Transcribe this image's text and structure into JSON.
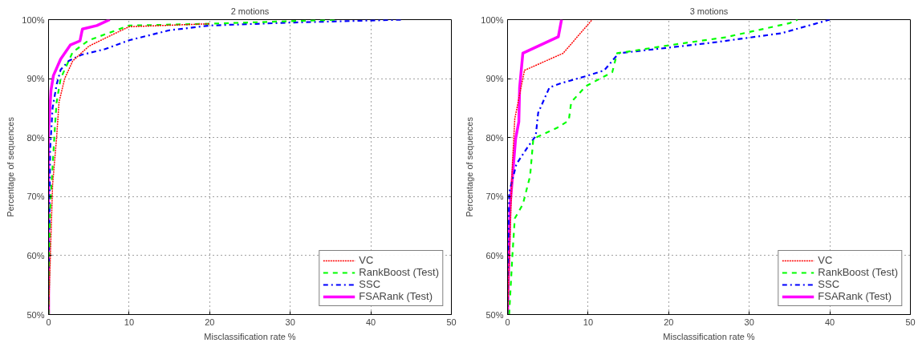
{
  "chart_data": [
    {
      "type": "line",
      "title": "2 motions",
      "xlabel": "Misclassification rate %",
      "ylabel": "Percentage of sequences",
      "xlim": [
        0,
        50
      ],
      "ylim": [
        50,
        100
      ],
      "xticks": [
        0,
        10,
        20,
        30,
        40,
        50
      ],
      "yticks": [
        {
          "value": 50,
          "label": "50%"
        },
        {
          "value": 60,
          "label": "60%"
        },
        {
          "value": 70,
          "label": "70%"
        },
        {
          "value": 80,
          "label": "80%"
        },
        {
          "value": 90,
          "label": "90%"
        },
        {
          "value": 100,
          "label": "100%"
        }
      ],
      "grid": true,
      "legend": "bottom right",
      "series": [
        {
          "name": "VC",
          "color": "#ff0000",
          "line_style": "dotted",
          "x": [
            0,
            0.5,
            1,
            1.3,
            2,
            3,
            5,
            8,
            10,
            20
          ],
          "values": [
            50,
            72,
            80,
            86,
            90,
            93,
            95.5,
            97.5,
            98.8,
            99.3
          ]
        },
        {
          "name": "RankBoost (Test)",
          "color": "#00ff00",
          "line_style": "dashed",
          "x": [
            0,
            0.2,
            0.5,
            0.8,
            1,
            1.5,
            2.5,
            3,
            5,
            8,
            10,
            20,
            36
          ],
          "values": [
            50,
            68,
            75,
            82,
            86,
            90,
            93,
            94.5,
            96.5,
            98,
            99,
            99.3,
            100
          ]
        },
        {
          "name": "SSC",
          "color": "#0000ff",
          "line_style": "dashdot",
          "x": [
            0,
            0.2,
            0.5,
            1,
            1.5,
            2.5,
            4,
            7,
            10,
            15,
            20,
            30,
            44
          ],
          "values": [
            50,
            78,
            85,
            89,
            91.5,
            93,
            94,
            95,
            96.5,
            98.2,
            99,
            99.5,
            100
          ]
        },
        {
          "name": "FSARank (Test)",
          "color": "#ff00ff",
          "line_style": "solid",
          "x": [
            0,
            0,
            0.3,
            0.6,
            1.5,
            2.7,
            3.9,
            4.2,
            6,
            7.6
          ],
          "values": [
            50,
            81,
            88,
            90.5,
            93.3,
            95.7,
            96.4,
            98.4,
            99,
            100
          ]
        }
      ]
    },
    {
      "type": "line",
      "title": "3 motions",
      "xlabel": "Misclassification rate %",
      "ylabel": "Percentage of sequences",
      "xlim": [
        0,
        50
      ],
      "ylim": [
        50,
        100
      ],
      "xticks": [
        0,
        10,
        20,
        30,
        40,
        50
      ],
      "yticks": [
        {
          "value": 50,
          "label": "50%"
        },
        {
          "value": 60,
          "label": "60%"
        },
        {
          "value": 70,
          "label": "70%"
        },
        {
          "value": 80,
          "label": "80%"
        },
        {
          "value": 90,
          "label": "90%"
        },
        {
          "value": 100,
          "label": "100%"
        }
      ],
      "grid": true,
      "legend": "bottom right",
      "series": [
        {
          "name": "VC",
          "color": "#ff0000",
          "line_style": "dotted",
          "x": [
            0,
            0.6,
            0.9,
            2.1,
            6.9,
            10.5
          ],
          "values": [
            50,
            75.5,
            83.2,
            91.4,
            94.3,
            100
          ]
        },
        {
          "name": "RankBoost (Test)",
          "color": "#00ff00",
          "line_style": "dashed",
          "x": [
            0.2,
            0.6,
            0.9,
            1.9,
            2.8,
            3.2,
            6.2,
            7.6,
            7.9,
            9.7,
            13,
            13.6,
            20.3,
            27,
            35,
            36
          ],
          "values": [
            50,
            60,
            66.3,
            68.7,
            73.5,
            79.8,
            81.7,
            82.9,
            86,
            88.7,
            91.1,
            94.3,
            95.7,
            97,
            99.4,
            100
          ]
        },
        {
          "name": "SSC",
          "color": "#0000ff",
          "line_style": "dashdot",
          "x": [
            0,
            0.2,
            1.1,
            2.5,
            3.5,
            3.8,
            5.2,
            6.6,
            9.7,
            12,
            13.8,
            20.3,
            26,
            34,
            40
          ],
          "values": [
            50,
            70.7,
            75.5,
            78.4,
            80.3,
            84.2,
            88.5,
            89.2,
            90.4,
            91.4,
            94.3,
            95.3,
            96.2,
            97.7,
            100
          ]
        },
        {
          "name": "FSARank (Test)",
          "color": "#ff00ff",
          "line_style": "solid",
          "x": [
            0,
            0.3,
            1,
            1.4,
            1.5,
            1.9,
            6.3,
            6.7
          ],
          "values": [
            50,
            68.2,
            79.8,
            82.7,
            88.5,
            94.3,
            97.1,
            100
          ]
        }
      ]
    }
  ]
}
